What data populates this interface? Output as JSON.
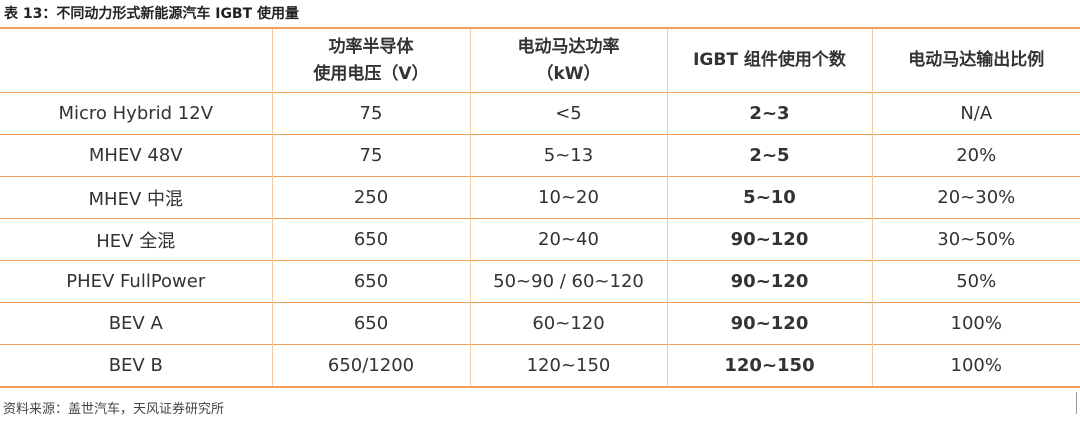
{
  "title": "表 13：不同动力形式新能源汽车 IGBT 使用量",
  "table": {
    "header": [
      "",
      "功率半导体\n使用电压（V）",
      "电动马达功率\n（kW）",
      "IGBT 组件使用个数",
      "电动马达输出比例"
    ],
    "rows": [
      [
        "Micro Hybrid 12V",
        "75",
        "<5",
        "2~3",
        "N/A"
      ],
      [
        "MHEV 48V",
        "75",
        "5~13",
        "2~5",
        "20%"
      ],
      [
        "MHEV 中混",
        "250",
        "10~20",
        "5~10",
        "20~30%"
      ],
      [
        "HEV 全混",
        "650",
        "20~40",
        "90~120",
        "30~50%"
      ],
      [
        "PHEV FullPower",
        "650",
        "50~90 / 60~120",
        "90~120",
        "50%"
      ],
      [
        "BEV A",
        "650",
        "60~120",
        "90~120",
        "100%"
      ],
      [
        "BEV B",
        "650/1200",
        "120~150",
        "120~150",
        "100%"
      ]
    ]
  },
  "source": "资料来源：盖世汽车，天风证券研究所"
}
